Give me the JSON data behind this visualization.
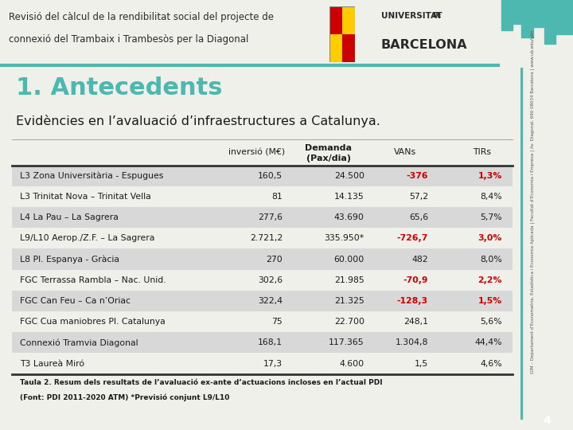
{
  "header_text_line1": "Revisió del càlcul de la rendibilitat social del projecte de",
  "header_text_line2": "connexió del Trambaix i Trambesòs per la Diagonal",
  "title": "1. Antecedents",
  "subtitle": "Evidències en l’avaluació d’infraestructures a Catalunya.",
  "col_headers_0": "inversió (M€)",
  "col_headers_1": "Demanda",
  "col_headers_2": "(Pax/dia)",
  "col_headers_3": "VANs",
  "col_headers_4": "TIRs",
  "rows": [
    {
      "label": "L3 Zona Universitària - Espugues",
      "inversio": "160,5",
      "demanda": "24.500",
      "vans": "-376",
      "tirs": "1,3%",
      "vans_red": true,
      "tirs_red": true,
      "bold": false
    },
    {
      "label": "L3 Trinitat Nova – Trinitat Vella",
      "inversio": "81",
      "demanda": "14.135",
      "vans": "57,2",
      "tirs": "8,4%",
      "vans_red": false,
      "tirs_red": false,
      "bold": false
    },
    {
      "label": "L4 La Pau – La Sagrera",
      "inversio": "277,6",
      "demanda": "43.690",
      "vans": "65,6",
      "tirs": "5,7%",
      "vans_red": false,
      "tirs_red": false,
      "bold": false
    },
    {
      "label": "L9/L10 Aerop./Z.F. – La Sagrera",
      "inversio": "2.721,2",
      "demanda": "335.950*",
      "vans": "-726,7",
      "tirs": "3,0%",
      "vans_red": true,
      "tirs_red": true,
      "bold": false
    },
    {
      "label": "L8 Pl. Espanya - Gràcia",
      "inversio": "270",
      "demanda": "60.000",
      "vans": "482",
      "tirs": "8,0%",
      "vans_red": false,
      "tirs_red": false,
      "bold": false
    },
    {
      "label": "FGC Terrassa Rambla – Nac. Unid.",
      "inversio": "302,6",
      "demanda": "21.985",
      "vans": "-70,9",
      "tirs": "2,2%",
      "vans_red": true,
      "tirs_red": true,
      "bold": false
    },
    {
      "label": "FGC Can Feu – Ca n’Oriac",
      "inversio": "322,4",
      "demanda": "21.325",
      "vans": "-128,3",
      "tirs": "1,5%",
      "vans_red": true,
      "tirs_red": true,
      "bold": false
    },
    {
      "label": "FGC Cua maniobres Pl. Catalunya",
      "inversio": "75",
      "demanda": "22.700",
      "vans": "248,1",
      "tirs": "5,6%",
      "vans_red": false,
      "tirs_red": false,
      "bold": false
    },
    {
      "label": "Connexió Tramvia Diagonal",
      "inversio": "168,1",
      "demanda": "117.365",
      "vans": "1.304,8",
      "tirs": "44,4%",
      "vans_red": false,
      "tirs_red": false,
      "bold": false
    },
    {
      "label": "T3 Laureà Miró",
      "inversio": "17,3",
      "demanda": "4.600",
      "vans": "1,5",
      "tirs": "4,6%",
      "vans_red": false,
      "tirs_red": false,
      "bold": false
    }
  ],
  "footnote_line1": "Taula 2. Resum dels resultats de l’avaluació ex-ante d’actuacions incloses en l’actual PDI",
  "footnote_line2": "(Font: PDI 2011-2020 ATM) *Previsió conjunt L9/L10",
  "sidebar_text": "GIM – Departament d’Econometria, Estadística i Economia Aplicada | Facultat d’Economia i Empresa | Av. Diagonal, 690 08034 Barcelona | www.ub.edu/gim",
  "page_number": "4",
  "bg_color": "#f0f0eb",
  "header_bg": "#ffffff",
  "teal_color": "#4db8b0",
  "dark_text": "#1a1a1a",
  "red_text": "#cc0000",
  "sidebar_line_color": "#4db8b0",
  "row_alt_color": "#d8d8d8",
  "row_plain_color": "#f0f0eb",
  "header_line_color": "#333333",
  "footnote_sep_color": "#333333"
}
